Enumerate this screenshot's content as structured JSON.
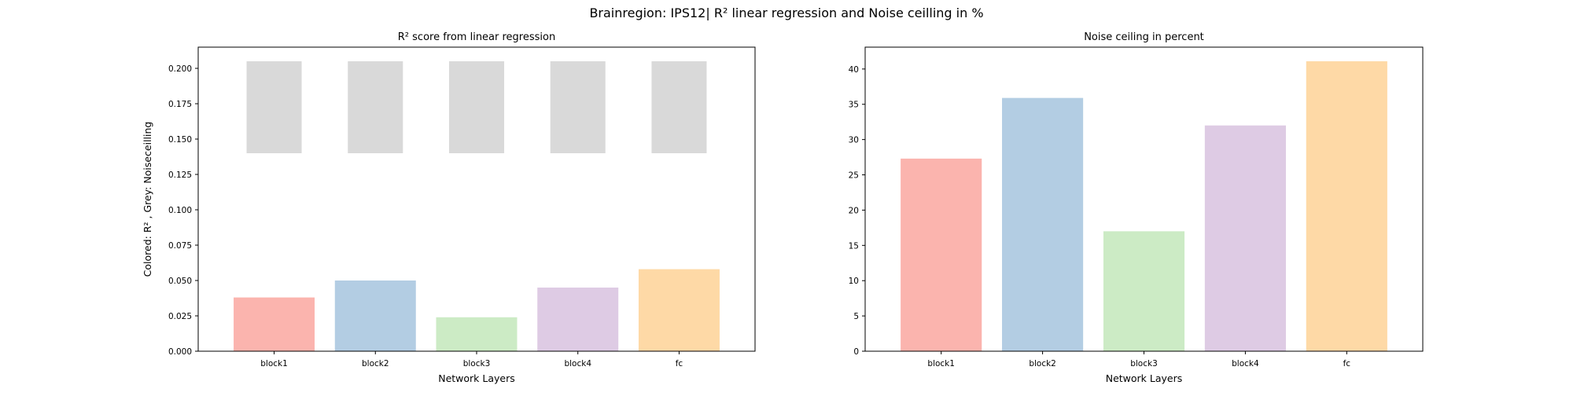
{
  "figure": {
    "title": "Brainregion: IPS12| R² linear regression and Noise ceilling in %"
  },
  "chart_data": [
    {
      "type": "bar",
      "title": "R² score from linear regression",
      "xlabel": "Network Layers",
      "ylabel": "Colored: R² , Grey: Noiseceilling",
      "categories": [
        "block1",
        "block2",
        "block3",
        "block4",
        "fc"
      ],
      "series": [
        {
          "values": [
            0.038,
            0.05,
            0.024,
            0.045,
            0.058
          ],
          "colors": [
            "#fbb4ae",
            "#b3cde3",
            "#ccebc5",
            "#decbe4",
            "#fed9a6"
          ]
        },
        {
          "kind": "floating",
          "bottom": [
            0.14,
            0.14,
            0.14,
            0.14,
            0.14
          ],
          "top": [
            0.205,
            0.205,
            0.205,
            0.205,
            0.205
          ],
          "color": "#d9d9d9"
        }
      ],
      "ylim": [
        0,
        0.215
      ],
      "yticks": [
        0.0,
        0.025,
        0.05,
        0.075,
        0.1,
        0.125,
        0.15,
        0.175,
        0.2
      ],
      "ytick_labels": [
        "0.000",
        "0.025",
        "0.050",
        "0.075",
        "0.100",
        "0.125",
        "0.150",
        "0.175",
        "0.200"
      ],
      "grid": false
    },
    {
      "type": "bar",
      "title": "Noise ceiling in percent",
      "xlabel": "Network Layers",
      "ylabel": "",
      "categories": [
        "block1",
        "block2",
        "block3",
        "block4",
        "fc"
      ],
      "series": [
        {
          "values": [
            27.3,
            35.9,
            17.0,
            32.0,
            41.1
          ],
          "colors": [
            "#fbb4ae",
            "#b3cde3",
            "#ccebc5",
            "#decbe4",
            "#fed9a6"
          ]
        }
      ],
      "ylim": [
        0,
        43.1
      ],
      "yticks": [
        0,
        5,
        10,
        15,
        20,
        25,
        30,
        35,
        40
      ],
      "ytick_labels": [
        "0",
        "5",
        "10",
        "15",
        "20",
        "25",
        "30",
        "35",
        "40"
      ],
      "grid": false
    }
  ]
}
